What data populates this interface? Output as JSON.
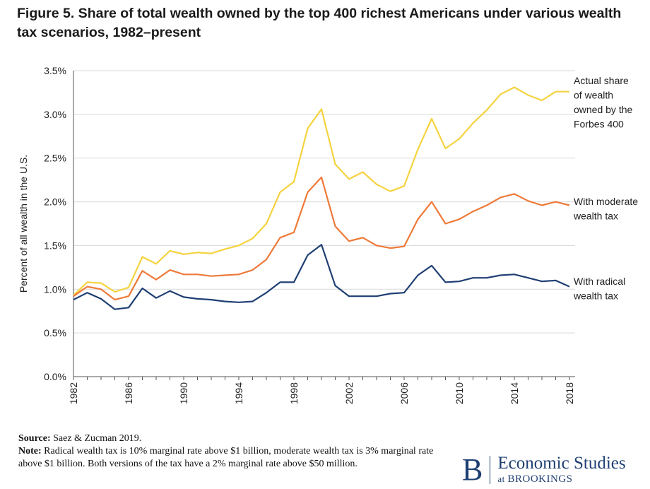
{
  "title": "Figure 5. Share of total wealth owned by the top 400 richest Americans under various wealth tax scenarios, 1982–present",
  "chart_data": {
    "type": "line",
    "ylabel": "Percent of all wealth in the U.S.",
    "ylim": [
      0,
      3.5
    ],
    "yticks": [
      0,
      0.5,
      1.0,
      1.5,
      2.0,
      2.5,
      3.0,
      3.5
    ],
    "ytick_labels": [
      "0.0%",
      "0.5%",
      "1.0%",
      "1.5%",
      "2.0%",
      "2.5%",
      "3.0%",
      "3.5%"
    ],
    "xlim": [
      1982,
      2018
    ],
    "xticks": [
      1982,
      1986,
      1990,
      1994,
      1998,
      2002,
      2006,
      2010,
      2014,
      2018
    ],
    "xtick_labels": [
      "1982",
      "1986",
      "1990",
      "1994",
      "1998",
      "2002",
      "2006",
      "2010",
      "2014",
      "2018"
    ],
    "x": [
      1982,
      1983,
      1984,
      1985,
      1986,
      1987,
      1988,
      1989,
      1990,
      1991,
      1992,
      1993,
      1994,
      1995,
      1996,
      1997,
      1998,
      1999,
      2000,
      2001,
      2002,
      2003,
      2004,
      2005,
      2006,
      2007,
      2008,
      2009,
      2010,
      2011,
      2012,
      2013,
      2014,
      2015,
      2016,
      2017,
      2018
    ],
    "series": [
      {
        "name": "Actual share of wealth owned by the Forbes 400",
        "label_lines": [
          "Actual share",
          "of wealth",
          "owned by the",
          "Forbes 400"
        ],
        "color": "#f5d33f",
        "values": [
          0.93,
          1.08,
          1.07,
          0.97,
          1.02,
          1.37,
          1.29,
          1.44,
          1.4,
          1.42,
          1.41,
          1.46,
          1.5,
          1.58,
          1.75,
          2.11,
          2.23,
          2.84,
          3.06,
          2.43,
          2.26,
          2.34,
          2.2,
          2.12,
          2.18,
          2.6,
          2.95,
          2.61,
          2.72,
          2.9,
          3.05,
          3.23,
          3.31,
          3.22,
          3.16,
          3.26,
          3.26
        ]
      },
      {
        "name": "With moderate wealth tax",
        "label_lines": [
          "With moderate",
          "wealth tax"
        ],
        "color": "#ee7a39",
        "values": [
          0.92,
          1.03,
          1.0,
          0.88,
          0.92,
          1.21,
          1.11,
          1.22,
          1.17,
          1.17,
          1.15,
          1.16,
          1.17,
          1.22,
          1.34,
          1.59,
          1.65,
          2.11,
          2.28,
          1.72,
          1.55,
          1.59,
          1.5,
          1.47,
          1.49,
          1.8,
          2.0,
          1.75,
          1.8,
          1.89,
          1.96,
          2.05,
          2.09,
          2.01,
          1.96,
          2.0,
          1.96
        ]
      },
      {
        "name": "With radical wealth tax",
        "label_lines": [
          "With radical",
          "wealth tax"
        ],
        "color": "#1f3f73",
        "values": [
          0.88,
          0.96,
          0.89,
          0.77,
          0.79,
          1.01,
          0.9,
          0.98,
          0.91,
          0.89,
          0.88,
          0.86,
          0.85,
          0.86,
          0.96,
          1.08,
          1.08,
          1.39,
          1.51,
          1.04,
          0.92,
          0.92,
          0.92,
          0.95,
          0.96,
          1.16,
          1.27,
          1.08,
          1.09,
          1.13,
          1.13,
          1.16,
          1.17,
          1.13,
          1.09,
          1.1,
          1.03
        ]
      }
    ]
  },
  "footer": {
    "source_label": "Source:",
    "source_text": " Saez & Zucman 2019.",
    "note_label": "Note:",
    "note_text": " Radical wealth tax is 10% marginal rate above $1 billion, moderate wealth tax is 3% marginal rate above $1 billion. Both versions of the tax have a 2% marginal rate above $50 million."
  },
  "brand": {
    "letter": "B",
    "name": "Economic Studies",
    "sub_prefix": "at",
    "sub_name": "BROOKINGS"
  }
}
